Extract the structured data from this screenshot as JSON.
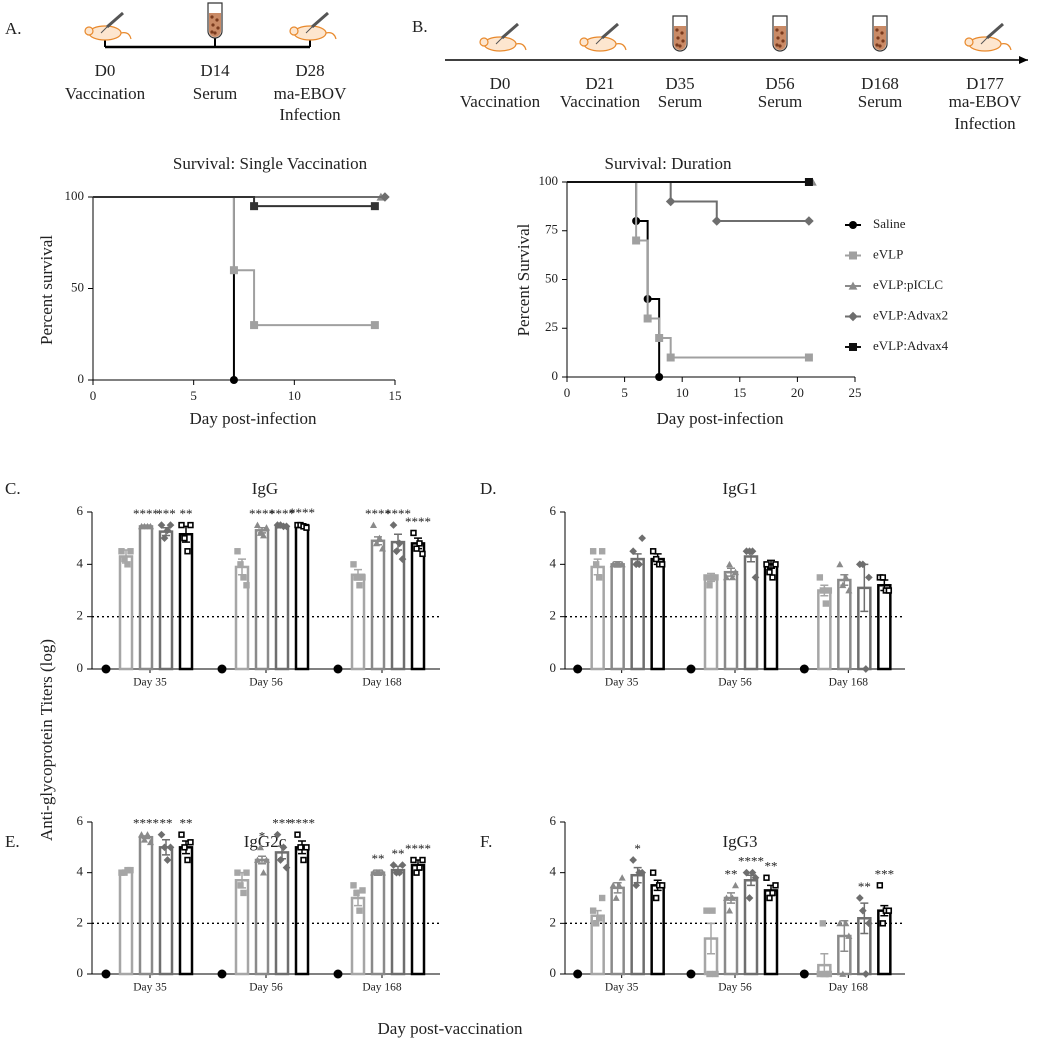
{
  "panel_labels": [
    "A.",
    "B.",
    "C.",
    "D.",
    "E.",
    "F."
  ],
  "timelines": [
    {
      "events": [
        {
          "day": "D0",
          "label": [
            "Vaccination"
          ]
        },
        {
          "day": "D14",
          "label": [
            "Serum"
          ]
        },
        {
          "day": "D28",
          "label": [
            "ma-EBOV",
            "Infection"
          ]
        }
      ]
    },
    {
      "events": [
        {
          "day": "D0",
          "label": [
            "Vaccination"
          ]
        },
        {
          "day": "D21",
          "label": [
            "Vaccination"
          ]
        },
        {
          "day": "D35",
          "label": [
            "Serum"
          ]
        },
        {
          "day": "D56",
          "label": [
            "Serum"
          ]
        },
        {
          "day": "D168",
          "label": [
            "Serum"
          ]
        },
        {
          "day": "D177",
          "label": [
            "ma-EBOV",
            "Infection"
          ]
        }
      ]
    }
  ],
  "shared": {
    "ylabel": "Anti-glycoprotein Titers (log)",
    "xlabel": "Day post-vaccination"
  },
  "chart_data": [
    {
      "type": "line",
      "step": "post",
      "title": "Survival: Single Vaccination",
      "xlabel": "Day post-infection",
      "ylabel": "Percent survival",
      "xlim": [
        0,
        15
      ],
      "xticks": [
        0,
        5,
        10,
        15
      ],
      "ylim": [
        0,
        100
      ],
      "yticks": [
        0,
        50,
        100
      ],
      "series": [
        {
          "color": "#000000",
          "marker": "circle",
          "x": [
            0,
            7
          ],
          "values": [
            100,
            0
          ]
        },
        {
          "color": "#a0a0a0",
          "marker": "square",
          "x": [
            0,
            7,
            8,
            14
          ],
          "values": [
            100,
            60,
            30,
            30
          ]
        },
        {
          "color": "#8a8a8a",
          "marker": "triangle",
          "x": [
            0,
            14.3
          ],
          "values": [
            100,
            100
          ]
        },
        {
          "color": "#6e6e6e",
          "marker": "diamond",
          "x": [
            0,
            14.5
          ],
          "values": [
            100,
            100
          ]
        },
        {
          "color": "#333333",
          "marker": "square",
          "x": [
            0,
            8,
            14
          ],
          "values": [
            100,
            95,
            95
          ]
        }
      ]
    },
    {
      "type": "line",
      "step": "post",
      "title": "Survival: Duration",
      "xlabel": "Day post-infection",
      "ylabel": "Percent Survival",
      "xlim": [
        0,
        25
      ],
      "xticks": [
        0,
        5,
        10,
        15,
        20,
        25
      ],
      "ylim": [
        0,
        100
      ],
      "yticks": [
        0,
        25,
        50,
        75,
        100
      ],
      "legend": "right",
      "series": [
        {
          "name": "Saline",
          "color": "#000000",
          "marker": "circle",
          "x": [
            0,
            6,
            7,
            8
          ],
          "values": [
            100,
            80,
            40,
            0
          ]
        },
        {
          "name": "eVLP",
          "color": "#a0a0a0",
          "marker": "square",
          "x": [
            0,
            6,
            7,
            8,
            9,
            21
          ],
          "values": [
            100,
            70,
            30,
            20,
            10,
            10
          ]
        },
        {
          "name": "eVLP:pICLC",
          "color": "#8a8a8a",
          "marker": "triangle",
          "x": [
            0,
            21.3
          ],
          "values": [
            100,
            100
          ]
        },
        {
          "name": "eVLP:Advax2",
          "color": "#6e6e6e",
          "marker": "diamond",
          "x": [
            0,
            9,
            13,
            21
          ],
          "values": [
            100,
            90,
            80,
            80
          ]
        },
        {
          "name": "eVLP:Advax4",
          "color": "#111111",
          "marker": "square",
          "x": [
            0,
            21
          ],
          "values": [
            100,
            100
          ]
        }
      ]
    },
    {
      "type": "bar",
      "title": "IgG",
      "categories": [
        "Day 35",
        "Day 56",
        "Day 168"
      ],
      "ylim": [
        0,
        6
      ],
      "yticks": [
        0,
        2,
        4,
        6
      ],
      "hline": 2,
      "series": [
        {
          "color": "#000000",
          "marker": "circle",
          "values": [
            0,
            0,
            0
          ]
        },
        {
          "color": "#a6a6a6",
          "marker": "square",
          "values": [
            4.3,
            3.9,
            3.6
          ],
          "errors": [
            0.25,
            0.3,
            0.2
          ],
          "points": [
            [
              4.5,
              4.2,
              4.0,
              4.5
            ],
            [
              4.5,
              4.0,
              3.5,
              3.2
            ],
            [
              4.0,
              3.5,
              3.2,
              3.5
            ]
          ]
        },
        {
          "color": "#8a8a8a",
          "marker": "triangle",
          "values": [
            5.45,
            5.3,
            4.9
          ],
          "errors": [
            0.05,
            0.1,
            0.15
          ],
          "points": [
            [
              5.45,
              5.45,
              5.45,
              5.45
            ],
            [
              5.5,
              5.2,
              5.1,
              5.4
            ],
            [
              5.5,
              4.8,
              5.0,
              4.6
            ]
          ],
          "stars": [
            "****",
            "****",
            "****"
          ]
        },
        {
          "color": "#6e6e6e",
          "marker": "diamond",
          "values": [
            5.25,
            5.45,
            4.85
          ],
          "errors": [
            0.15,
            0.05,
            0.3
          ],
          "points": [
            [
              5.5,
              5.0,
              5.3,
              5.5
            ],
            [
              5.5,
              5.5,
              5.45,
              5.45
            ],
            [
              5.5,
              4.5,
              4.8,
              4.2
            ]
          ],
          "stars": [
            "***",
            "****",
            "****"
          ]
        },
        {
          "color": "#000000",
          "marker": "open-square",
          "values": [
            5.15,
            5.5,
            4.8
          ],
          "errors": [
            0.3,
            0.05,
            0.2
          ],
          "points": [
            [
              5.5,
              5.0,
              4.5,
              5.5
            ],
            [
              5.5,
              5.5,
              5.45,
              5.4
            ],
            [
              5.2,
              4.6,
              4.8,
              4.4
            ]
          ],
          "stars": [
            "**",
            "****",
            "****"
          ]
        }
      ]
    },
    {
      "type": "bar",
      "title": "IgG1",
      "categories": [
        "Day 35",
        "Day 56",
        "Day 168"
      ],
      "ylim": [
        0,
        6
      ],
      "yticks": [
        0,
        2,
        4,
        6
      ],
      "hline": 2,
      "series": [
        {
          "color": "#000000",
          "marker": "circle",
          "values": [
            0,
            0,
            0
          ]
        },
        {
          "color": "#a6a6a6",
          "marker": "square",
          "values": [
            3.9,
            3.5,
            3.0
          ],
          "errors": [
            0.3,
            0.15,
            0.2
          ],
          "points": [
            [
              4.5,
              4.0,
              3.5,
              4.5
            ],
            [
              3.5,
              3.2,
              3.5,
              3.5
            ],
            [
              3.5,
              3.0,
              2.5,
              3.0
            ]
          ]
        },
        {
          "color": "#8a8a8a",
          "marker": "triangle",
          "values": [
            4.0,
            3.7,
            3.4
          ],
          "errors": [
            0.1,
            0.15,
            0.2
          ],
          "points": [
            [
              4.0,
              4.0,
              4.0,
              4.0
            ],
            [
              3.5,
              4.0,
              3.5,
              3.7
            ],
            [
              4.0,
              3.2,
              3.5,
              3.0
            ]
          ]
        },
        {
          "color": "#6e6e6e",
          "marker": "diamond",
          "values": [
            4.2,
            4.3,
            3.1
          ],
          "errors": [
            0.2,
            0.2,
            0.9
          ],
          "points": [
            [
              4.5,
              4.0,
              4.0,
              5.0
            ],
            [
              4.5,
              4.5,
              4.5,
              3.5
            ],
            [
              4.0,
              4.0,
              0,
              3.5
            ]
          ]
        },
        {
          "color": "#000000",
          "marker": "open-square",
          "values": [
            4.2,
            4.0,
            3.2
          ],
          "errors": [
            0.2,
            0.15,
            0.2
          ],
          "points": [
            [
              4.5,
              4.2,
              4.0,
              4.0
            ],
            [
              4.0,
              3.7,
              3.5,
              4.0
            ],
            [
              3.5,
              3.5,
              3.0,
              3.0
            ]
          ]
        }
      ]
    },
    {
      "type": "bar",
      "title": "IgG2c",
      "categories": [
        "Day 35",
        "Day 56",
        "Day 168"
      ],
      "ylim": [
        0,
        6
      ],
      "yticks": [
        0,
        2,
        4,
        6
      ],
      "hline": 2,
      "series": [
        {
          "color": "#000000",
          "marker": "circle",
          "values": [
            0,
            0,
            0
          ]
        },
        {
          "color": "#a6a6a6",
          "marker": "square",
          "values": [
            4.05,
            3.7,
            3.0
          ],
          "errors": [
            0.05,
            0.3,
            0.3
          ],
          "points": [
            [
              4.0,
              4.0,
              4.1,
              4.1
            ],
            [
              4.0,
              3.5,
              3.2,
              4.0
            ],
            [
              3.5,
              3.2,
              2.5,
              3.3
            ]
          ]
        },
        {
          "color": "#8a8a8a",
          "marker": "triangle",
          "values": [
            5.4,
            4.5,
            4.0
          ],
          "errors": [
            0.05,
            0.15,
            0.1
          ],
          "points": [
            [
              5.5,
              5.3,
              5.5,
              5.2
            ],
            [
              4.5,
              5.0,
              4.0,
              4.5
            ],
            [
              4.0,
              4.0,
              4.0,
              4.0
            ]
          ],
          "stars": [
            "****",
            "*",
            "**"
          ]
        },
        {
          "color": "#6e6e6e",
          "marker": "diamond",
          "values": [
            5.0,
            4.8,
            4.1
          ],
          "errors": [
            0.3,
            0.25,
            0.15
          ],
          "points": [
            [
              5.5,
              5.0,
              4.5,
              5.0
            ],
            [
              5.5,
              4.5,
              5.0,
              4.2
            ],
            [
              4.3,
              4.0,
              4.0,
              4.3
            ]
          ],
          "stars": [
            "**",
            "***",
            "**"
          ]
        },
        {
          "color": "#000000",
          "marker": "open-square",
          "values": [
            5.0,
            5.0,
            4.3
          ],
          "errors": [
            0.25,
            0.25,
            0.2
          ],
          "points": [
            [
              5.5,
              5.0,
              4.5,
              5.2
            ],
            [
              5.5,
              5.0,
              4.5,
              5.0
            ],
            [
              4.5,
              4.0,
              4.2,
              4.5
            ]
          ],
          "stars": [
            "**",
            "****",
            "****"
          ]
        }
      ]
    },
    {
      "type": "bar",
      "title": "IgG3",
      "categories": [
        "Day 35",
        "Day 56",
        "Day 168"
      ],
      "ylim": [
        0,
        6
      ],
      "yticks": [
        0,
        2,
        4,
        6
      ],
      "hline": 2,
      "series": [
        {
          "color": "#000000",
          "marker": "circle",
          "values": [
            0,
            0,
            0
          ]
        },
        {
          "color": "#a6a6a6",
          "marker": "square",
          "values": [
            2.3,
            1.4,
            0.35
          ],
          "errors": [
            0.2,
            0.6,
            0.45
          ],
          "points": [
            [
              2.5,
              2.0,
              2.2,
              3.0
            ],
            [
              2.5,
              0,
              2.5,
              0
            ],
            [
              0,
              2.0,
              0,
              0
            ]
          ]
        },
        {
          "color": "#8a8a8a",
          "marker": "triangle",
          "values": [
            3.4,
            3.0,
            1.5
          ],
          "errors": [
            0.2,
            0.2,
            0.6
          ],
          "points": [
            [
              3.5,
              3.0,
              3.5,
              3.8
            ],
            [
              3.0,
              2.5,
              3.0,
              3.5
            ],
            [
              2.0,
              0,
              2.0,
              1.5
            ]
          ],
          "stars": [
            null,
            "**",
            null
          ]
        },
        {
          "color": "#6e6e6e",
          "marker": "diamond",
          "values": [
            3.9,
            3.7,
            2.2
          ],
          "errors": [
            0.3,
            0.2,
            0.6
          ],
          "points": [
            [
              4.5,
              3.5,
              4.0,
              4.0
            ],
            [
              4.0,
              3.0,
              4.0,
              3.8
            ],
            [
              3.0,
              2.5,
              0,
              2.0
            ]
          ],
          "stars": [
            "*",
            "****",
            "**"
          ]
        },
        {
          "color": "#000000",
          "marker": "open-square",
          "values": [
            3.5,
            3.3,
            2.5
          ],
          "errors": [
            0.2,
            0.2,
            0.2
          ],
          "points": [
            [
              4.0,
              3.0,
              3.5,
              3.5
            ],
            [
              3.8,
              3.0,
              3.2,
              3.5
            ],
            [
              3.5,
              2.0,
              2.5,
              2.5
            ]
          ],
          "stars": [
            null,
            "**",
            "***"
          ]
        }
      ]
    }
  ]
}
